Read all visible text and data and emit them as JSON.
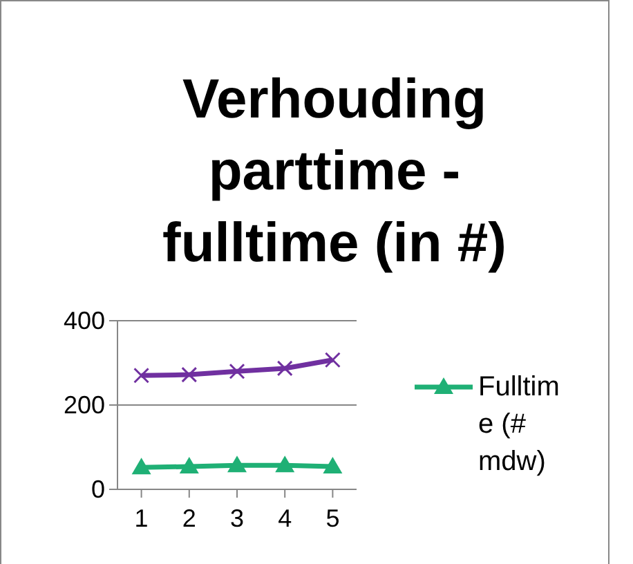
{
  "chart_data": {
    "type": "line",
    "title": "Verhouding parttime - fulltime (in #)",
    "categories": [
      "1",
      "2",
      "3",
      "4",
      "5"
    ],
    "series": [
      {
        "color": "#7030a0",
        "values": [
          270,
          272,
          280,
          287,
          307
        ],
        "marker": "cross"
      },
      {
        "name": "Fulltime (# mdw)",
        "color": "#1fb075",
        "values": [
          52,
          54,
          57,
          57,
          54
        ],
        "marker": "triangle"
      }
    ],
    "ylim": [
      0,
      400
    ],
    "yticks": [
      0,
      200,
      400
    ],
    "grid": "y",
    "legend": "right"
  }
}
